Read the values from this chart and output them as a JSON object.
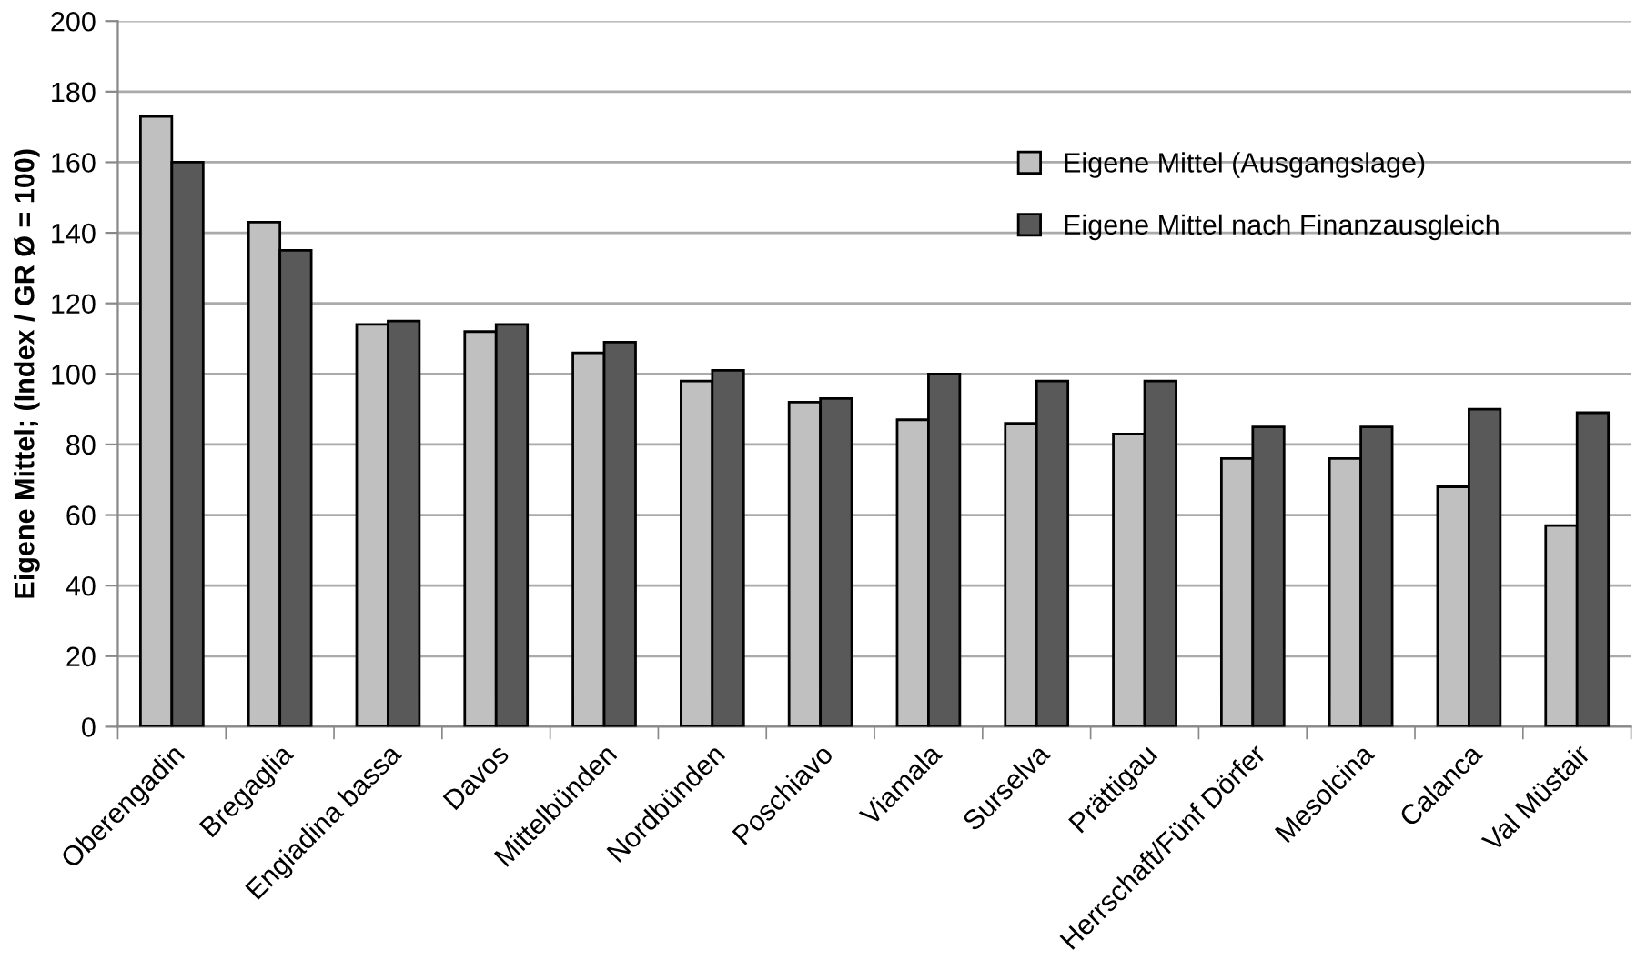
{
  "chart_data": {
    "type": "bar",
    "ylabel": "Eigene Mittel; (Index / GR Ø = 100)",
    "categories": [
      "Oberengadin",
      "Bregaglia",
      "Engiadina bassa",
      "Davos",
      "Mittelbünden",
      "Nordbünden",
      "Poschiavo",
      "Viamala",
      "Surselva",
      "Prättigau",
      "Herrschaft/Fünf Dörfer",
      "Mesolcina",
      "Calanca",
      "Val Müstair"
    ],
    "series": [
      {
        "name": "Eigene Mittel (Ausgangslage)",
        "color": "#c0c0c0",
        "values": [
          173,
          143,
          114,
          112,
          106,
          98,
          92,
          87,
          86,
          83,
          76,
          76,
          68,
          57
        ]
      },
      {
        "name": "Eigene Mittel nach Finanzausgleich",
        "color": "#595959",
        "values": [
          160,
          135,
          115,
          114,
          109,
          101,
          93,
          100,
          98,
          98,
          85,
          85,
          90,
          89
        ]
      }
    ],
    "ylim": [
      0,
      200
    ],
    "yticks": [
      0,
      20,
      40,
      60,
      80,
      100,
      120,
      140,
      160,
      180,
      200
    ],
    "grid": "y",
    "legend": "top right"
  }
}
